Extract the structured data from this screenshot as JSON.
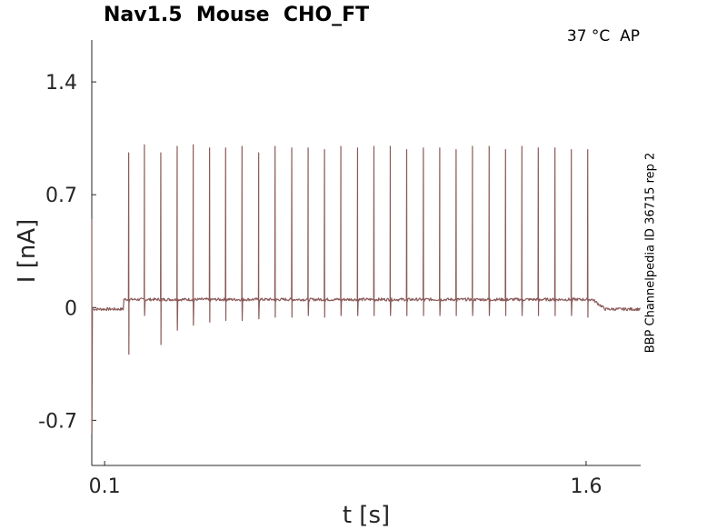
{
  "title": "Nav1.5  Mouse  CHO_FT",
  "condition": "37 °C  AP",
  "side_label": "BBP Channelpedia ID 36715 rep 2",
  "colors": {
    "trace": "#8b5a5a",
    "axis": "#262626"
  },
  "chart_data": {
    "type": "line",
    "title": "Nav1.5  Mouse  CHO_FT",
    "xlabel": "t [s]",
    "ylabel": "I [nA]",
    "xlim": [
      0.06,
      1.77
    ],
    "ylim": [
      -0.98,
      1.66
    ],
    "xticks": [
      0.1,
      1.6
    ],
    "xtick_labels": [
      "0.1",
      "1.6"
    ],
    "yticks": [
      1.4,
      0.7,
      0,
      -0.7
    ],
    "ytick_labels": [
      "1.4",
      "0.7",
      "0",
      "-0.7"
    ],
    "grid": false,
    "series": [
      {
        "stimulus_start_s": 0.16,
        "stimulus_end_s": 1.62,
        "baseline_nA": -0.01,
        "plateau_nA": 0.05,
        "initial_transient_min_nA": -0.78,
        "spikes": [
          {
            "t": 0.175,
            "peak": 0.96,
            "trough": -0.29
          },
          {
            "t": 0.224,
            "peak": 1.01,
            "trough": -0.05
          },
          {
            "t": 0.275,
            "peak": 0.96,
            "trough": -0.23
          },
          {
            "t": 0.326,
            "peak": 1.0,
            "trough": -0.14
          },
          {
            "t": 0.376,
            "peak": 1.01,
            "trough": -0.11
          },
          {
            "t": 0.427,
            "peak": 0.99,
            "trough": -0.09
          },
          {
            "t": 0.477,
            "peak": 0.99,
            "trough": -0.08
          },
          {
            "t": 0.528,
            "peak": 1.0,
            "trough": -0.08
          },
          {
            "t": 0.58,
            "peak": 0.96,
            "trough": -0.07
          },
          {
            "t": 0.631,
            "peak": 1.0,
            "trough": -0.06
          },
          {
            "t": 0.683,
            "peak": 0.99,
            "trough": -0.06
          },
          {
            "t": 0.734,
            "peak": 0.99,
            "trough": -0.05
          },
          {
            "t": 0.785,
            "peak": 0.98,
            "trough": -0.06
          },
          {
            "t": 0.836,
            "peak": 1.0,
            "trough": -0.05
          },
          {
            "t": 0.888,
            "peak": 0.99,
            "trough": -0.05
          },
          {
            "t": 0.939,
            "peak": 1.0,
            "trough": -0.05
          },
          {
            "t": 0.99,
            "peak": 1.0,
            "trough": -0.05
          },
          {
            "t": 1.041,
            "peak": 0.98,
            "trough": -0.05
          },
          {
            "t": 1.093,
            "peak": 0.99,
            "trough": -0.05
          },
          {
            "t": 1.144,
            "peak": 0.99,
            "trough": -0.05
          },
          {
            "t": 1.195,
            "peak": 0.98,
            "trough": -0.05
          },
          {
            "t": 1.246,
            "peak": 1.0,
            "trough": -0.05
          },
          {
            "t": 1.298,
            "peak": 1.0,
            "trough": -0.05
          },
          {
            "t": 1.349,
            "peak": 0.98,
            "trough": -0.05
          },
          {
            "t": 1.4,
            "peak": 1.0,
            "trough": -0.05
          },
          {
            "t": 1.451,
            "peak": 0.99,
            "trough": -0.05
          },
          {
            "t": 1.503,
            "peak": 0.99,
            "trough": -0.05
          },
          {
            "t": 1.554,
            "peak": 0.98,
            "trough": -0.05
          },
          {
            "t": 1.605,
            "peak": 0.98,
            "trough": -0.06
          }
        ]
      }
    ]
  }
}
